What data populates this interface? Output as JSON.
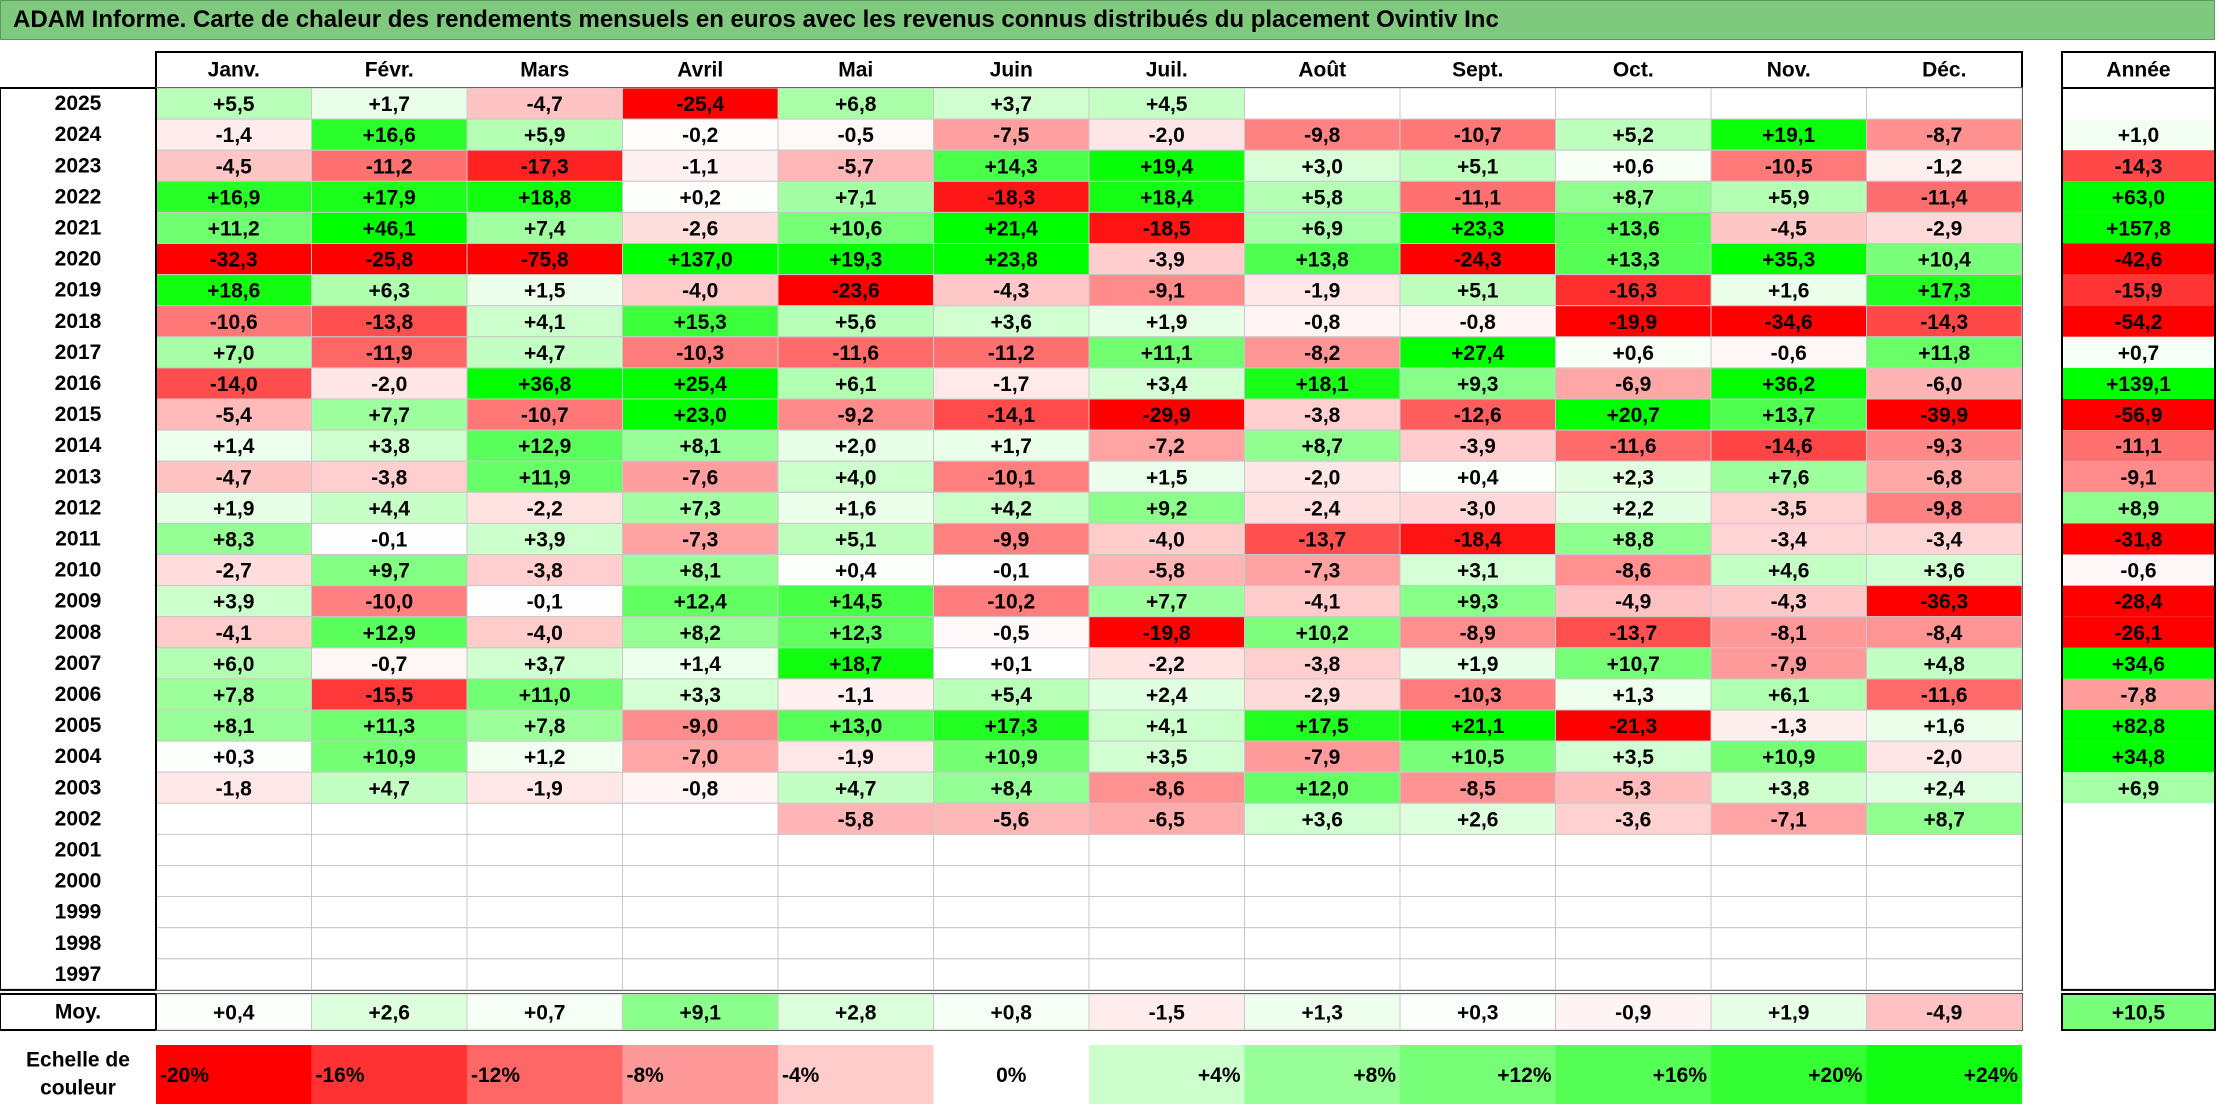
{
  "title": "ADAM Informe. Carte de chaleur des rendements mensuels en euros avec les revenus connus distribués du placement Ovintiv Inc",
  "chart_data": {
    "type": "heatmap",
    "title": "ADAM Informe. Carte de chaleur des rendements mensuels en euros avec les revenus connus distribués du placement Ovintiv Inc",
    "months": [
      "Janv.",
      "Févr.",
      "Mars",
      "Avril",
      "Mai",
      "Juin",
      "Juil.",
      "Août",
      "Sept.",
      "Oct.",
      "Nov.",
      "Déc."
    ],
    "annual_header": "Année",
    "years": [
      "2025",
      "2024",
      "2023",
      "2022",
      "2021",
      "2020",
      "2019",
      "2018",
      "2017",
      "2016",
      "2015",
      "2014",
      "2013",
      "2012",
      "2011",
      "2010",
      "2009",
      "2008",
      "2007",
      "2006",
      "2005",
      "2004",
      "2003",
      "2002",
      "2001",
      "2000",
      "1999",
      "1998",
      "1997"
    ],
    "values": [
      [
        "+5,5",
        "+1,7",
        "-4,7",
        "-25,4",
        "+6,8",
        "+3,7",
        "+4,5",
        "",
        "",
        "",
        "",
        ""
      ],
      [
        "-1,4",
        "+16,6",
        "+5,9",
        "-0,2",
        "-0,5",
        "-7,5",
        "-2,0",
        "-9,8",
        "-10,7",
        "+5,2",
        "+19,1",
        "-8,7"
      ],
      [
        "-4,5",
        "-11,2",
        "-17,3",
        "-1,1",
        "-5,7",
        "+14,3",
        "+19,4",
        "+3,0",
        "+5,1",
        "+0,6",
        "-10,5",
        "-1,2"
      ],
      [
        "+16,9",
        "+17,9",
        "+18,8",
        "+0,2",
        "+7,1",
        "-18,3",
        "+18,4",
        "+5,8",
        "-11,1",
        "+8,7",
        "+5,9",
        "-11,4"
      ],
      [
        "+11,2",
        "+46,1",
        "+7,4",
        "-2,6",
        "+10,6",
        "+21,4",
        "-18,5",
        "+6,9",
        "+23,3",
        "+13,6",
        "-4,5",
        "-2,9"
      ],
      [
        "-32,3",
        "-25,8",
        "-75,8",
        "+137,0",
        "+19,3",
        "+23,8",
        "-3,9",
        "+13,8",
        "-24,3",
        "+13,3",
        "+35,3",
        "+10,4"
      ],
      [
        "+18,6",
        "+6,3",
        "+1,5",
        "-4,0",
        "-23,6",
        "-4,3",
        "-9,1",
        "-1,9",
        "+5,1",
        "-16,3",
        "+1,6",
        "+17,3"
      ],
      [
        "-10,6",
        "-13,8",
        "+4,1",
        "+15,3",
        "+5,6",
        "+3,6",
        "+1,9",
        "-0,8",
        "-0,8",
        "-19,9",
        "-34,6",
        "-14,3"
      ],
      [
        "+7,0",
        "-11,9",
        "+4,7",
        "-10,3",
        "-11,6",
        "-11,2",
        "+11,1",
        "-8,2",
        "+27,4",
        "+0,6",
        "-0,6",
        "+11,8"
      ],
      [
        "-14,0",
        "-2,0",
        "+36,8",
        "+25,4",
        "+6,1",
        "-1,7",
        "+3,4",
        "+18,1",
        "+9,3",
        "-6,9",
        "+36,2",
        "-6,0"
      ],
      [
        "-5,4",
        "+7,7",
        "-10,7",
        "+23,0",
        "-9,2",
        "-14,1",
        "-29,9",
        "-3,8",
        "-12,6",
        "+20,7",
        "+13,7",
        "-39,9"
      ],
      [
        "+1,4",
        "+3,8",
        "+12,9",
        "+8,1",
        "+2,0",
        "+1,7",
        "-7,2",
        "+8,7",
        "-3,9",
        "-11,6",
        "-14,6",
        "-9,3"
      ],
      [
        "-4,7",
        "-3,8",
        "+11,9",
        "-7,6",
        "+4,0",
        "-10,1",
        "+1,5",
        "-2,0",
        "+0,4",
        "+2,3",
        "+7,6",
        "-6,8"
      ],
      [
        "+1,9",
        "+4,4",
        "-2,2",
        "+7,3",
        "+1,6",
        "+4,2",
        "+9,2",
        "-2,4",
        "-3,0",
        "+2,2",
        "-3,5",
        "-9,8"
      ],
      [
        "+8,3",
        "-0,1",
        "+3,9",
        "-7,3",
        "+5,1",
        "-9,9",
        "-4,0",
        "-13,7",
        "-18,4",
        "+8,8",
        "-3,4",
        "-3,4"
      ],
      [
        "-2,7",
        "+9,7",
        "-3,8",
        "+8,1",
        "+0,4",
        "-0,1",
        "-5,8",
        "-7,3",
        "+3,1",
        "-8,6",
        "+4,6",
        "+3,6"
      ],
      [
        "+3,9",
        "-10,0",
        "-0,1",
        "+12,4",
        "+14,5",
        "-10,2",
        "+7,7",
        "-4,1",
        "+9,3",
        "-4,9",
        "-4,3",
        "-36,3"
      ],
      [
        "-4,1",
        "+12,9",
        "-4,0",
        "+8,2",
        "+12,3",
        "-0,5",
        "-19,8",
        "+10,2",
        "-8,9",
        "-13,7",
        "-8,1",
        "-8,4"
      ],
      [
        "+6,0",
        "-0,7",
        "+3,7",
        "+1,4",
        "+18,7",
        "+0,1",
        "-2,2",
        "-3,8",
        "+1,9",
        "+10,7",
        "-7,9",
        "+4,8"
      ],
      [
        "+7,8",
        "-15,5",
        "+11,0",
        "+3,3",
        "-1,1",
        "+5,4",
        "+2,4",
        "-2,9",
        "-10,3",
        "+1,3",
        "+6,1",
        "-11,6"
      ],
      [
        "+8,1",
        "+11,3",
        "+7,8",
        "-9,0",
        "+13,0",
        "+17,3",
        "+4,1",
        "+17,5",
        "+21,1",
        "-21,3",
        "-1,3",
        "+1,6"
      ],
      [
        "+0,3",
        "+10,9",
        "+1,2",
        "-7,0",
        "-1,9",
        "+10,9",
        "+3,5",
        "-7,9",
        "+10,5",
        "+3,5",
        "+10,9",
        "-2,0"
      ],
      [
        "-1,8",
        "+4,7",
        "-1,9",
        "-0,8",
        "+4,7",
        "+8,4",
        "-8,6",
        "+12,0",
        "-8,5",
        "-5,3",
        "+3,8",
        "+2,4"
      ],
      [
        "",
        "",
        "",
        "",
        "-5,8",
        "-5,6",
        "-6,5",
        "+3,6",
        "+2,6",
        "-3,6",
        "-7,1",
        "+8,7"
      ],
      [
        "",
        "",
        "",
        "",
        "",
        "",
        "",
        "",
        "",
        "",
        "",
        ""
      ],
      [
        "",
        "",
        "",
        "",
        "",
        "",
        "",
        "",
        "",
        "",
        "",
        ""
      ],
      [
        "",
        "",
        "",
        "",
        "",
        "",
        "",
        "",
        "",
        "",
        "",
        ""
      ],
      [
        "",
        "",
        "",
        "",
        "",
        "",
        "",
        "",
        "",
        "",
        "",
        ""
      ],
      [
        "",
        "",
        "",
        "",
        "",
        "",
        "",
        "",
        "",
        "",
        "",
        ""
      ]
    ],
    "annual": [
      "",
      "+1,0",
      "-14,3",
      "+63,0",
      "+157,8",
      "-42,6",
      "-15,9",
      "-54,2",
      "+0,7",
      "+139,1",
      "-56,9",
      "-11,1",
      "-9,1",
      "+8,9",
      "-31,8",
      "-0,6",
      "-28,4",
      "-26,1",
      "+34,6",
      "-7,8",
      "+82,8",
      "+34,8",
      "+6,9",
      "",
      "",
      "",
      "",
      "",
      ""
    ],
    "average_label": "Moy.",
    "averages": [
      "+0,4",
      "+2,6",
      "+0,7",
      "+9,1",
      "+2,8",
      "+0,8",
      "-1,5",
      "+1,3",
      "+0,3",
      "-0,9",
      "+1,9",
      "-4,9"
    ],
    "average_annual": "+10,5",
    "scale_label_line1": "Echelle de",
    "scale_label_line2": "couleur",
    "scale": [
      "-20%",
      "-16%",
      "-12%",
      "-8%",
      "-4%",
      "0%",
      "+4%",
      "+8%",
      "+12%",
      "+16%",
      "+20%",
      "+24%"
    ],
    "scale_colors": [
      "#ff0000",
      "#ff3333",
      "#ff6666",
      "#ff9999",
      "#ffcccc",
      "#ffffff",
      "#ccffcc",
      "#99ff99",
      "#77ff77",
      "#55ff55",
      "#33ff33",
      "#11ff11"
    ]
  }
}
